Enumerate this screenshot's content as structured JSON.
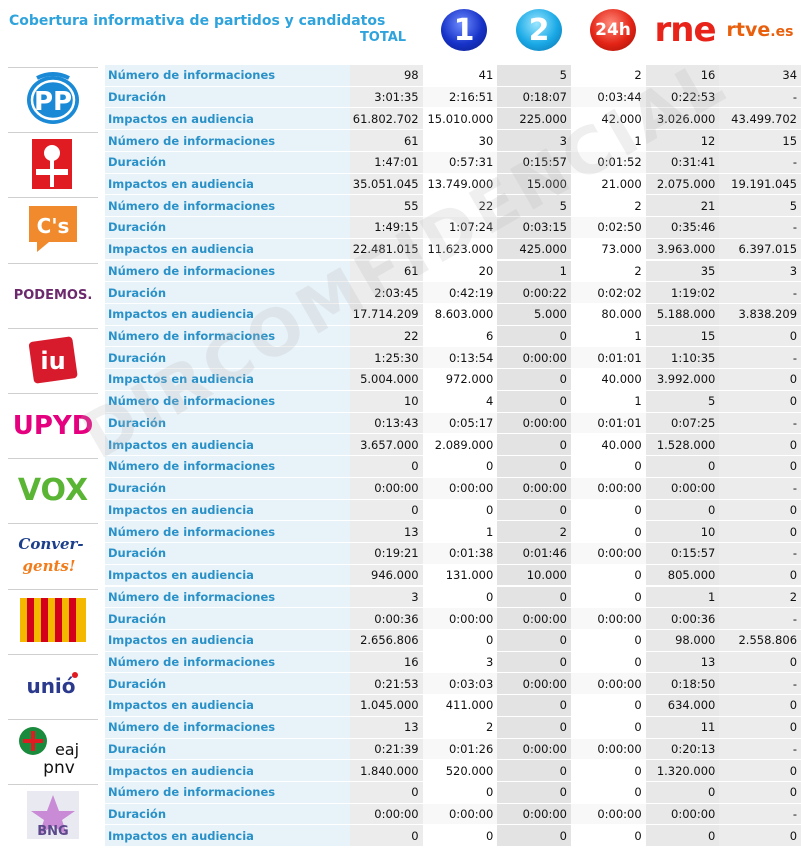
{
  "title": "Cobertura informativa de partidos y candidatos",
  "columns": {
    "total": "TOTAL",
    "ch1": "1",
    "ch2": "2",
    "ch24": "24h",
    "rne": "rne",
    "rtve": "rtve",
    "rtve_suffix": ".es"
  },
  "metric_labels": [
    "Número de informaciones",
    "Duración",
    "Impactos en audiencia"
  ],
  "colors": {
    "accent": "#2fa3dc",
    "rne": "#e8241a",
    "rtve": "#e8600e"
  },
  "parties": [
    {
      "logo_name": "PP",
      "icon": "pp-logo-icon",
      "rows": [
        [
          "98",
          "41",
          "5",
          "2",
          "16",
          "34"
        ],
        [
          "3:01:35",
          "2:16:51",
          "0:18:07",
          "0:03:44",
          "0:22:53",
          "-"
        ],
        [
          "61.802.702",
          "15.010.000",
          "225.000",
          "42.000",
          "3.026.000",
          "43.499.702"
        ]
      ]
    },
    {
      "logo_name": "PSOE",
      "icon": "psoe-rose-icon",
      "rows": [
        [
          "61",
          "30",
          "3",
          "1",
          "12",
          "15"
        ],
        [
          "1:47:01",
          "0:57:31",
          "0:15:57",
          "0:01:52",
          "0:31:41",
          "-"
        ],
        [
          "35.051.045",
          "13.749.000",
          "15.000",
          "21.000",
          "2.075.000",
          "19.191.045"
        ]
      ]
    },
    {
      "logo_name": "C's",
      "icon": "ciudadanos-logo-icon",
      "rows": [
        [
          "55",
          "22",
          "5",
          "2",
          "21",
          "5"
        ],
        [
          "1:49:15",
          "1:07:24",
          "0:03:15",
          "0:02:50",
          "0:35:46",
          "-"
        ],
        [
          "22.481.015",
          "11.623.000",
          "425.000",
          "73.000",
          "3.963.000",
          "6.397.015"
        ]
      ]
    },
    {
      "logo_name": "PODEMOS.",
      "icon": "podemos-logo-icon",
      "rows": [
        [
          "61",
          "20",
          "1",
          "2",
          "35",
          "3"
        ],
        [
          "2:03:45",
          "0:42:19",
          "0:00:22",
          "0:02:02",
          "1:19:02",
          "-"
        ],
        [
          "17.714.209",
          "8.603.000",
          "5.000",
          "80.000",
          "5.188.000",
          "3.838.209"
        ]
      ]
    },
    {
      "logo_name": "iu",
      "icon": "iu-logo-icon",
      "rows": [
        [
          "22",
          "6",
          "0",
          "1",
          "15",
          "0"
        ],
        [
          "1:25:30",
          "0:13:54",
          "0:00:00",
          "0:01:01",
          "1:10:35",
          "-"
        ],
        [
          "5.004.000",
          "972.000",
          "0",
          "40.000",
          "3.992.000",
          "0"
        ]
      ]
    },
    {
      "logo_name": "UPYD",
      "icon": "upyd-logo-icon",
      "rows": [
        [
          "10",
          "4",
          "0",
          "1",
          "5",
          "0"
        ],
        [
          "0:13:43",
          "0:05:17",
          "0:00:00",
          "0:01:01",
          "0:07:25",
          "-"
        ],
        [
          "3.657.000",
          "2.089.000",
          "0",
          "40.000",
          "1.528.000",
          "0"
        ]
      ]
    },
    {
      "logo_name": "VOX",
      "icon": "vox-logo-icon",
      "rows": [
        [
          "0",
          "0",
          "0",
          "0",
          "0",
          "0"
        ],
        [
          "0:00:00",
          "0:00:00",
          "0:00:00",
          "0:00:00",
          "0:00:00",
          "-"
        ],
        [
          "0",
          "0",
          "0",
          "0",
          "0",
          "0"
        ]
      ]
    },
    {
      "logo_name": "Conver-gents!",
      "icon": "convergents-logo-icon",
      "rows": [
        [
          "13",
          "1",
          "2",
          "0",
          "10",
          "0"
        ],
        [
          "0:19:21",
          "0:01:38",
          "0:01:46",
          "0:00:00",
          "0:15:57",
          "-"
        ],
        [
          "946.000",
          "131.000",
          "10.000",
          "0",
          "805.000",
          "0"
        ]
      ]
    },
    {
      "logo_name": "",
      "icon": "erc-flag-icon",
      "rows": [
        [
          "3",
          "0",
          "0",
          "0",
          "1",
          "2"
        ],
        [
          "0:00:36",
          "0:00:00",
          "0:00:00",
          "0:00:00",
          "0:00:36",
          "-"
        ],
        [
          "2.656.806",
          "0",
          "0",
          "0",
          "98.000",
          "2.558.806"
        ]
      ]
    },
    {
      "logo_name": "unió",
      "icon": "unio-logo-icon",
      "rows": [
        [
          "16",
          "3",
          "0",
          "0",
          "13",
          "0"
        ],
        [
          "0:21:53",
          "0:03:03",
          "0:00:00",
          "0:00:00",
          "0:18:50",
          "-"
        ],
        [
          "1.045.000",
          "411.000",
          "0",
          "0",
          "634.000",
          "0"
        ]
      ]
    },
    {
      "logo_name": "eaj pnv",
      "icon": "eaj-pnv-logo-icon",
      "rows": [
        [
          "13",
          "2",
          "0",
          "0",
          "11",
          "0"
        ],
        [
          "0:21:39",
          "0:01:26",
          "0:00:00",
          "0:00:00",
          "0:20:13",
          "-"
        ],
        [
          "1.840.000",
          "520.000",
          "0",
          "0",
          "1.320.000",
          "0"
        ]
      ]
    },
    {
      "logo_name": "BNG",
      "icon": "bng-logo-icon",
      "rows": [
        [
          "0",
          "0",
          "0",
          "0",
          "0",
          "0"
        ],
        [
          "0:00:00",
          "0:00:00",
          "0:00:00",
          "0:00:00",
          "0:00:00",
          "-"
        ],
        [
          "0",
          "0",
          "0",
          "0",
          "0",
          "0"
        ]
      ]
    }
  ],
  "watermark": "DIRCOMFIDENCIAL"
}
